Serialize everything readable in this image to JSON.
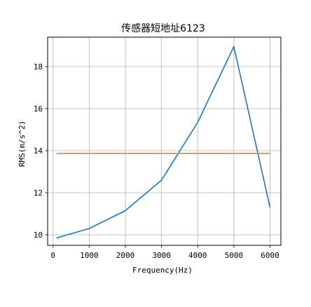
{
  "chart_data": {
    "type": "line",
    "title": "传感器短地址6123",
    "xlabel": "Frequency(Hz)",
    "ylabel": "RMS(m/s^2)",
    "xlim": [
      -150,
      6300
    ],
    "ylim": [
      9.5,
      19.4
    ],
    "xticks": [
      0,
      1000,
      2000,
      3000,
      4000,
      5000,
      6000
    ],
    "yticks": [
      10,
      12,
      14,
      16,
      18
    ],
    "grid": true,
    "series": [
      {
        "color": "#1f77b4",
        "x": [
          100,
          1000,
          2000,
          3000,
          4000,
          5000,
          6000
        ],
        "y": [
          9.85,
          10.3,
          11.15,
          12.6,
          15.35,
          18.95,
          11.3
        ]
      },
      {
        "color": "#ff7f0e",
        "x": [
          100,
          6000
        ],
        "y": [
          13.87,
          13.87
        ]
      }
    ]
  }
}
